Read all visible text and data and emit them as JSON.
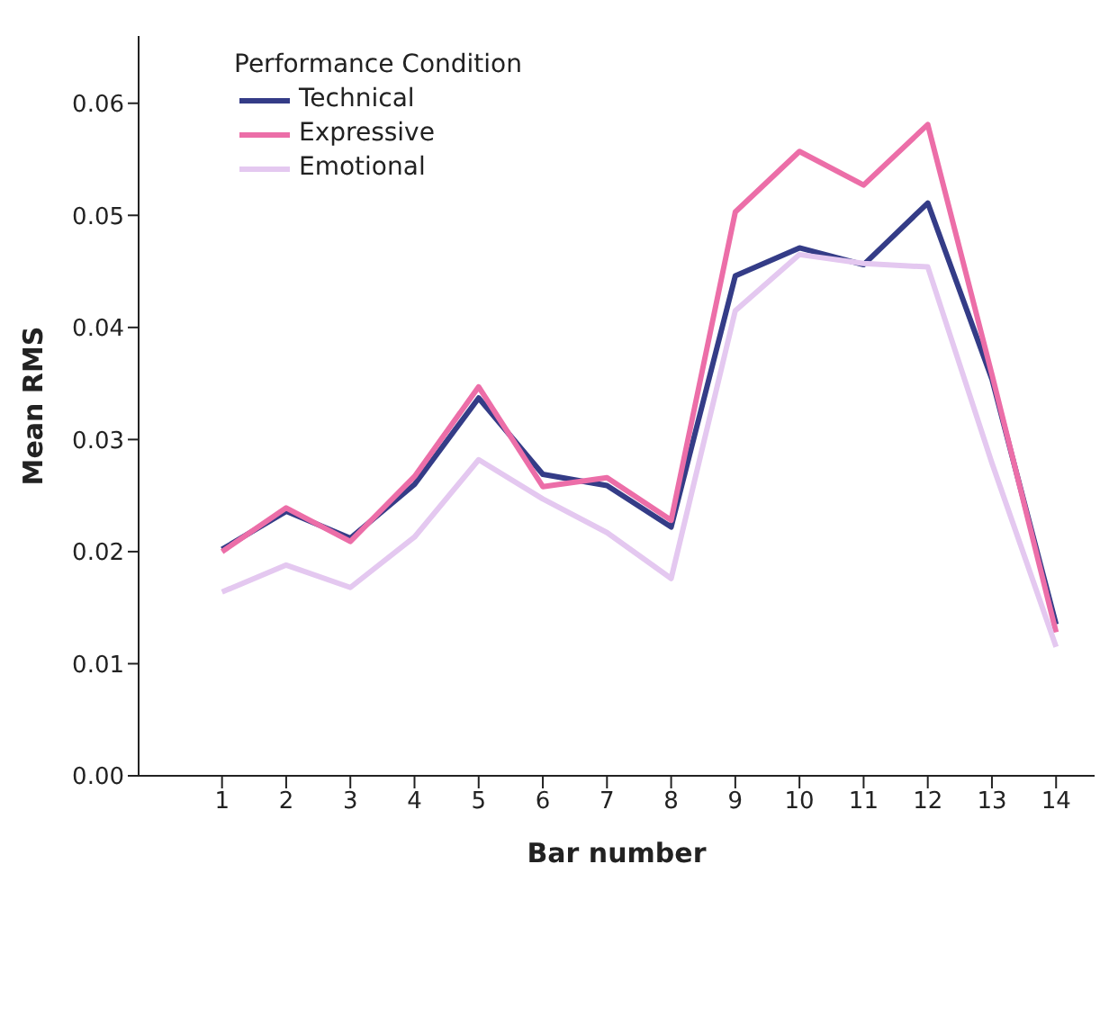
{
  "chart_data": {
    "type": "line",
    "xlabel": "Bar number",
    "ylabel": "Mean RMS",
    "legend_title": "Performance Condition",
    "x": [
      1,
      2,
      3,
      4,
      5,
      6,
      7,
      8,
      9,
      10,
      11,
      12,
      13,
      14
    ],
    "xlim": [
      -0.3,
      14.6
    ],
    "xticks": [
      1,
      2,
      3,
      4,
      5,
      6,
      7,
      8,
      9,
      10,
      11,
      12,
      13,
      14
    ],
    "ylim": [
      0,
      0.066
    ],
    "yticks": [
      {
        "value": 0,
        "label": "0.00"
      },
      0.01,
      0.02,
      0.03,
      0.04,
      0.05,
      0.06
    ],
    "grid": false,
    "legend": "top left",
    "marker": "none",
    "line_style": "solid",
    "series": [
      {
        "name": "Technical",
        "color": "#343c87",
        "values": [
          0.0202,
          0.0236,
          0.0212,
          0.026,
          0.0337,
          0.0269,
          0.0259,
          0.0222,
          0.0446,
          0.0471,
          0.0456,
          0.0511,
          0.0354,
          0.0135
        ]
      },
      {
        "name": "Expressive",
        "color": "#ec6ea8",
        "values": [
          0.02,
          0.0239,
          0.0209,
          0.0267,
          0.0347,
          0.0258,
          0.0266,
          0.0228,
          0.0503,
          0.0557,
          0.0527,
          0.0581,
          0.0358,
          0.0128
        ]
      },
      {
        "name": "Emotional",
        "color": "#e4c8f0",
        "values": [
          0.0164,
          0.0188,
          0.0168,
          0.0213,
          0.0282,
          0.0247,
          0.0217,
          0.0176,
          0.0415,
          0.0465,
          0.0457,
          0.0454,
          0.0279,
          0.0115
        ]
      }
    ]
  }
}
